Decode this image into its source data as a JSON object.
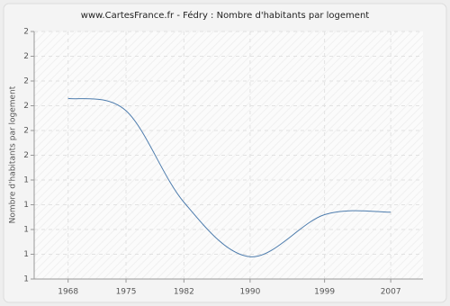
{
  "chart_data": {
    "type": "line",
    "title": "www.CartesFrance.fr - Fédry : Nombre d'habitants par logement",
    "y_label": "Nombre d'habitants par logement",
    "x": [
      1968,
      1975,
      1982,
      1990,
      1999,
      2007
    ],
    "series": [
      {
        "name": "Nombre d'habitants par logement",
        "color": "#4d7cad",
        "values": [
          1.73,
          1.68,
          1.31,
          1.09,
          1.26,
          1.27
        ]
      }
    ],
    "xlim": [
      1963.9,
      2010.9
    ],
    "xticks": [
      1968,
      1975,
      1982,
      1990,
      1999,
      2007
    ],
    "ylim": [
      1.0,
      2.0
    ],
    "yticks": [
      {
        "value": 1.0,
        "label": "1"
      },
      {
        "value": 1.1,
        "label": "1"
      },
      {
        "value": 1.2,
        "label": "1"
      },
      {
        "value": 1.3,
        "label": "1"
      },
      {
        "value": 1.4,
        "label": "1"
      },
      {
        "value": 1.5,
        "label": "2"
      },
      {
        "value": 1.6,
        "label": "2"
      },
      {
        "value": 1.7,
        "label": "2"
      },
      {
        "value": 1.8,
        "label": "2"
      },
      {
        "value": 1.9,
        "label": "2"
      },
      {
        "value": 2.0,
        "label": "2"
      }
    ],
    "grid": true
  }
}
